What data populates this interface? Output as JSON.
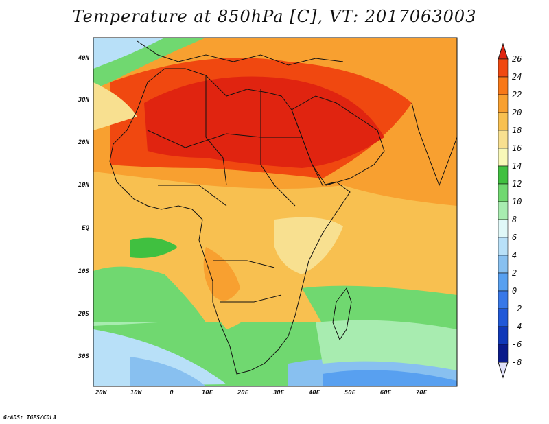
{
  "title": "Temperature at 850hPa [C], VT: 2017063003",
  "map": {
    "lat_ticks": [
      "40N",
      "30N",
      "20N",
      "10N",
      "EQ",
      "10S",
      "20S",
      "30S"
    ],
    "lon_ticks": [
      "20W",
      "10W",
      "0",
      "10E",
      "20E",
      "30E",
      "40E",
      "50E",
      "60E",
      "70E"
    ]
  },
  "colorbar": {
    "labels": [
      "26",
      "24",
      "22",
      "20",
      "18",
      "16",
      "14",
      "12",
      "10",
      "8",
      "6",
      "4",
      "2",
      "0",
      "-2",
      "-4",
      "-6",
      "-8"
    ],
    "colors": [
      "#e02410",
      "#f04810",
      "#f87818",
      "#f8a030",
      "#f8c050",
      "#f8e090",
      "#f8f8b8",
      "#40c040",
      "#70d870",
      "#a8ecb0",
      "#e0f8f8",
      "#b8e0f8",
      "#88c0f0",
      "#58a0f0",
      "#3878e8",
      "#2058d8",
      "#1038b8",
      "#0a1a8a",
      "#e0e0f8"
    ]
  },
  "credit": "GrADS: IGES/COLA"
}
